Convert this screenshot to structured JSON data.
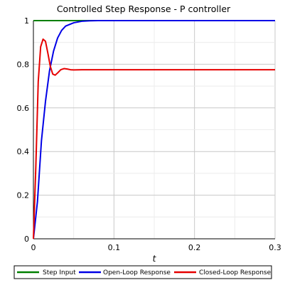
{
  "chart_data": {
    "type": "line",
    "title": "Controlled Step Response - P controller",
    "xlabel": "t",
    "ylabel": "",
    "xlim": [
      0,
      0.3
    ],
    "ylim": [
      0,
      1
    ],
    "x_ticks": [
      "0",
      "0.1",
      "0.2",
      "0.3"
    ],
    "y_ticks": [
      "0",
      "0.2",
      "0.4",
      "0.6",
      "0.8",
      "1"
    ],
    "grid": true,
    "legend_position": "bottom",
    "series": [
      {
        "name": "Step Input",
        "color": "#007f00",
        "x": [
          0,
          0.3
        ],
        "y": [
          1,
          1
        ]
      },
      {
        "name": "Open-Loop Response",
        "color": "#0000e6",
        "x": [
          0,
          0.005,
          0.01,
          0.015,
          0.02,
          0.025,
          0.03,
          0.035,
          0.04,
          0.05,
          0.06,
          0.07,
          0.08,
          0.1,
          0.15,
          0.2,
          0.25,
          0.3
        ],
        "y": [
          0,
          0.17,
          0.45,
          0.63,
          0.77,
          0.86,
          0.92,
          0.955,
          0.975,
          0.99,
          0.997,
          0.999,
          1,
          1,
          1,
          1,
          1,
          1
        ]
      },
      {
        "name": "Closed-Loop Response",
        "color": "#e60000",
        "x": [
          0,
          0.003,
          0.006,
          0.009,
          0.012,
          0.015,
          0.018,
          0.021,
          0.024,
          0.027,
          0.03,
          0.034,
          0.038,
          0.042,
          0.046,
          0.05,
          0.06,
          0.08,
          0.1,
          0.2,
          0.3
        ],
        "y": [
          0,
          0.33,
          0.72,
          0.88,
          0.915,
          0.905,
          0.85,
          0.79,
          0.755,
          0.75,
          0.76,
          0.775,
          0.78,
          0.778,
          0.775,
          0.774,
          0.775,
          0.775,
          0.775,
          0.775,
          0.775
        ]
      }
    ]
  }
}
